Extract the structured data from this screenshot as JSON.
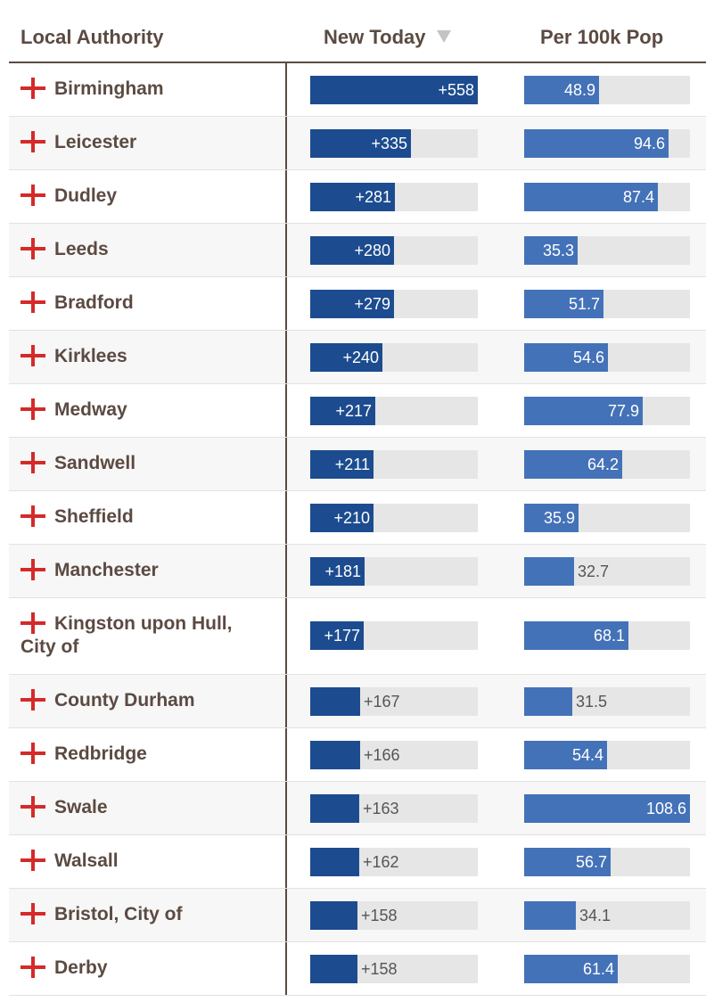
{
  "header": {
    "authority": "Local Authority",
    "new_today": "New Today",
    "per_100k": "Per 100k Pop"
  },
  "colors": {
    "new_today_bar": "#1c4c8f",
    "per_100k_bar": "#4472b8",
    "bar_track": "#e6e6e6",
    "flag_red": "#d42a2a",
    "text": "#5b4a42"
  },
  "icons": {
    "flag": "england-flag-icon",
    "sort": "sort-descending-icon"
  },
  "max": {
    "new": 558,
    "per": 108.6
  },
  "rows": [
    {
      "name": "Birmingham",
      "new": 558,
      "new_label": "+558",
      "per": 48.9,
      "per_label": "48.9"
    },
    {
      "name": "Leicester",
      "new": 335,
      "new_label": "+335",
      "per": 94.6,
      "per_label": "94.6"
    },
    {
      "name": "Dudley",
      "new": 281,
      "new_label": "+281",
      "per": 87.4,
      "per_label": "87.4"
    },
    {
      "name": "Leeds",
      "new": 280,
      "new_label": "+280",
      "per": 35.3,
      "per_label": "35.3"
    },
    {
      "name": "Bradford",
      "new": 279,
      "new_label": "+279",
      "per": 51.7,
      "per_label": "51.7"
    },
    {
      "name": "Kirklees",
      "new": 240,
      "new_label": "+240",
      "per": 54.6,
      "per_label": "54.6"
    },
    {
      "name": "Medway",
      "new": 217,
      "new_label": "+217",
      "per": 77.9,
      "per_label": "77.9"
    },
    {
      "name": "Sandwell",
      "new": 211,
      "new_label": "+211",
      "per": 64.2,
      "per_label": "64.2"
    },
    {
      "name": "Sheffield",
      "new": 210,
      "new_label": "+210",
      "per": 35.9,
      "per_label": "35.9"
    },
    {
      "name": "Manchester",
      "new": 181,
      "new_label": "+181",
      "per": 32.7,
      "per_label": "32.7"
    },
    {
      "name": "Kingston upon Hull,",
      "name_line2": "City of",
      "new": 177,
      "new_label": "+177",
      "per": 68.1,
      "per_label": "68.1"
    },
    {
      "name": "County Durham",
      "new": 167,
      "new_label": "+167",
      "per": 31.5,
      "per_label": "31.5"
    },
    {
      "name": "Redbridge",
      "new": 166,
      "new_label": "+166",
      "per": 54.4,
      "per_label": "54.4"
    },
    {
      "name": "Swale",
      "new": 163,
      "new_label": "+163",
      "per": 108.6,
      "per_label": "108.6"
    },
    {
      "name": "Walsall",
      "new": 162,
      "new_label": "+162",
      "per": 56.7,
      "per_label": "56.7"
    },
    {
      "name": "Bristol, City of",
      "new": 158,
      "new_label": "+158",
      "per": 34.1,
      "per_label": "34.1"
    },
    {
      "name": "Derby",
      "new": 158,
      "new_label": "+158",
      "per": 61.4,
      "per_label": "61.4"
    }
  ]
}
